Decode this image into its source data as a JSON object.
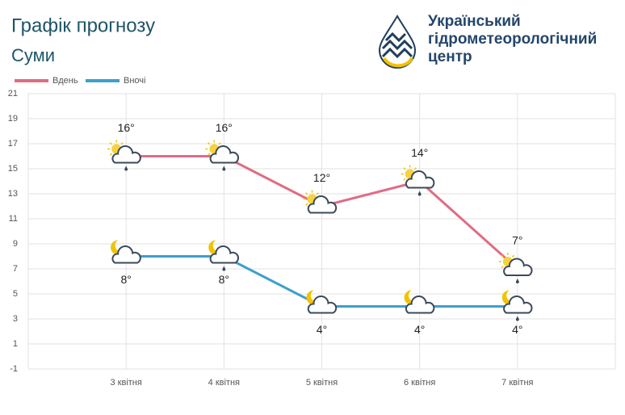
{
  "chart_data": {
    "type": "line",
    "title": "Графік прогнозу",
    "subtitle": "Суми",
    "categories": [
      "3 квітня",
      "4 квітня",
      "5 квітня",
      "6 квітня",
      "7 квітня"
    ],
    "series": [
      {
        "name": "Вдень",
        "color": "#e06c84",
        "values": [
          16,
          16,
          12,
          14,
          7
        ],
        "value_labels": [
          "16°",
          "16°",
          "12°",
          "14°",
          "7°"
        ]
      },
      {
        "name": "Вночі",
        "color": "#3d9fcb",
        "values": [
          8,
          8,
          4,
          4,
          4
        ],
        "value_labels": [
          "8°",
          "8°",
          "4°",
          "4°",
          "4°"
        ]
      }
    ],
    "ylim": [
      -1,
      21
    ],
    "yticks": [
      -1,
      1,
      3,
      5,
      7,
      9,
      11,
      13,
      15,
      17,
      19,
      21
    ],
    "grid": true,
    "legend": "top-left"
  },
  "logo": {
    "lines": [
      "Український",
      "гідрометеорологічний",
      "центр"
    ]
  }
}
